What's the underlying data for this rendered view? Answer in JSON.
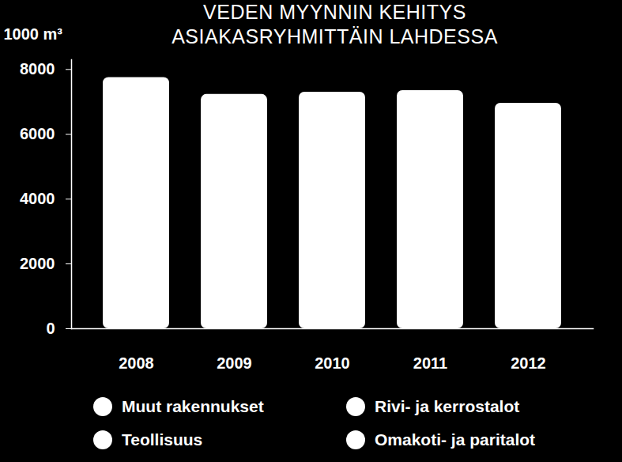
{
  "chart_data": {
    "type": "bar",
    "title": "VEDEN MYYNNIN KEHITYS",
    "subtitle": "ASIAKASRYHMITTÄIN LAHDESSA",
    "y_label": "1000 m³",
    "categories": [
      "2008",
      "2009",
      "2010",
      "2011",
      "2012"
    ],
    "values": [
      7750,
      7230,
      7300,
      7350,
      6960
    ],
    "color": "#ffffff",
    "ylim": [
      0,
      8300
    ],
    "yticks": [
      0,
      2000,
      4000,
      6000,
      8000
    ],
    "grid": false,
    "legend_items": [
      {
        "name": "Muut rakennukset",
        "color": "#ffffff"
      },
      {
        "name": "Rivi- ja kerrostalot",
        "color": "#ffffff"
      },
      {
        "name": "Teollisuus",
        "color": "#ffffff"
      },
      {
        "name": "Omakoti- ja paritalot",
        "color": "#ffffff"
      }
    ]
  }
}
